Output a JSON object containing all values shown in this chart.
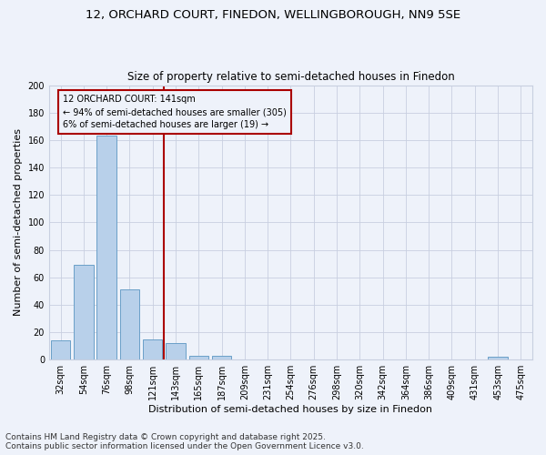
{
  "title_line1": "12, ORCHARD COURT, FINEDON, WELLINGBOROUGH, NN9 5SE",
  "title_line2": "Size of property relative to semi-detached houses in Finedon",
  "xlabel": "Distribution of semi-detached houses by size in Finedon",
  "ylabel": "Number of semi-detached properties",
  "categories": [
    "32sqm",
    "54sqm",
    "76sqm",
    "98sqm",
    "121sqm",
    "143sqm",
    "165sqm",
    "187sqm",
    "209sqm",
    "231sqm",
    "254sqm",
    "276sqm",
    "298sqm",
    "320sqm",
    "342sqm",
    "364sqm",
    "386sqm",
    "409sqm",
    "431sqm",
    "453sqm",
    "475sqm"
  ],
  "values": [
    14,
    69,
    163,
    51,
    15,
    12,
    3,
    3,
    0,
    0,
    0,
    0,
    0,
    0,
    0,
    0,
    0,
    0,
    0,
    2,
    0
  ],
  "bar_color": "#b8d0ea",
  "bar_edge_color": "#6a9fc8",
  "vline_color": "#aa0000",
  "annotation_text": "12 ORCHARD COURT: 141sqm\n← 94% of semi-detached houses are smaller (305)\n6% of semi-detached houses are larger (19) →",
  "annotation_box_color": "#aa0000",
  "ylim": [
    0,
    200
  ],
  "yticks": [
    0,
    20,
    40,
    60,
    80,
    100,
    120,
    140,
    160,
    180,
    200
  ],
  "footer_line1": "Contains HM Land Registry data © Crown copyright and database right 2025.",
  "footer_line2": "Contains public sector information licensed under the Open Government Licence v3.0.",
  "background_color": "#eef2fa",
  "grid_color": "#c8cfe0",
  "title_fontsize": 9.5,
  "subtitle_fontsize": 8.5,
  "axis_label_fontsize": 8,
  "tick_fontsize": 7,
  "annotation_fontsize": 7,
  "footer_fontsize": 6.5
}
